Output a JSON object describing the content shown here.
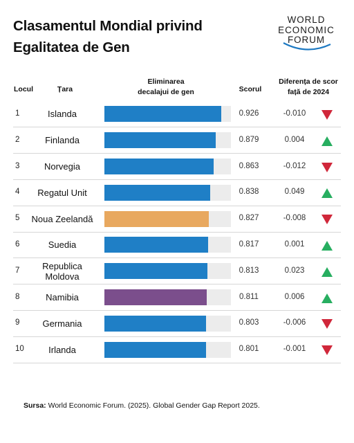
{
  "title_line1": "Clasamentul Mondial privind",
  "title_line2": "Egalitatea de Gen",
  "logo": {
    "line1": "WORLD",
    "line2": "ECONOMIC",
    "line3": "FORUM"
  },
  "headers": {
    "rank": "Locul",
    "country": "Țara",
    "bar_line1": "Eliminarea",
    "bar_line2": "decalajui de gen",
    "score": "Scorul",
    "diff_line1": "Diferența de scor",
    "diff_line2": "față de 2024"
  },
  "colors": {
    "default_bar": "#1f7fc6",
    "highlight_orange": "#e8a85f",
    "highlight_purple": "#7b4e8c",
    "up": "#27ae60",
    "down": "#d0273a"
  },
  "chart_data": {
    "type": "bar",
    "xlim": [
      0,
      1
    ],
    "rows": [
      {
        "rank": "1",
        "country": [
          "Islanda"
        ],
        "value": 0.926,
        "score": "0.926",
        "diff": "-0.010",
        "trend": "down",
        "color": "#1f7fc6"
      },
      {
        "rank": "2",
        "country": [
          "Finlanda"
        ],
        "value": 0.879,
        "score": "0.879",
        "diff": "0.004",
        "trend": "up",
        "color": "#1f7fc6"
      },
      {
        "rank": "3",
        "country": [
          "Norvegia"
        ],
        "value": 0.863,
        "score": "0.863",
        "diff": "-0.012",
        "trend": "down",
        "color": "#1f7fc6"
      },
      {
        "rank": "4",
        "country": [
          "Regatul Unit"
        ],
        "value": 0.838,
        "score": "0.838",
        "diff": "0.049",
        "trend": "up",
        "color": "#1f7fc6"
      },
      {
        "rank": "5",
        "country": [
          "Noua Zeelandă"
        ],
        "value": 0.827,
        "score": "0.827",
        "diff": "-0.008",
        "trend": "down",
        "color": "#e8a85f"
      },
      {
        "rank": "6",
        "country": [
          "Suedia"
        ],
        "value": 0.817,
        "score": "0.817",
        "diff": "0.001",
        "trend": "up",
        "color": "#1f7fc6"
      },
      {
        "rank": "7",
        "country": [
          "Republica",
          "Moldova"
        ],
        "value": 0.813,
        "score": "0.813",
        "diff": "0.023",
        "trend": "up",
        "color": "#1f7fc6"
      },
      {
        "rank": "8",
        "country": [
          "Namibia"
        ],
        "value": 0.811,
        "score": "0.811",
        "diff": "0.006",
        "trend": "up",
        "color": "#7b4e8c"
      },
      {
        "rank": "9",
        "country": [
          "Germania"
        ],
        "value": 0.803,
        "score": "0.803",
        "diff": "-0.006",
        "trend": "down",
        "color": "#1f7fc6"
      },
      {
        "rank": "10",
        "country": [
          "Irlanda"
        ],
        "value": 0.801,
        "score": "0.801",
        "diff": "-0.001",
        "trend": "down",
        "color": "#1f7fc6"
      }
    ]
  },
  "source_label": "Sursa:",
  "source_text": " World Economic Forum. (2025). Global Gender Gap Report 2025."
}
